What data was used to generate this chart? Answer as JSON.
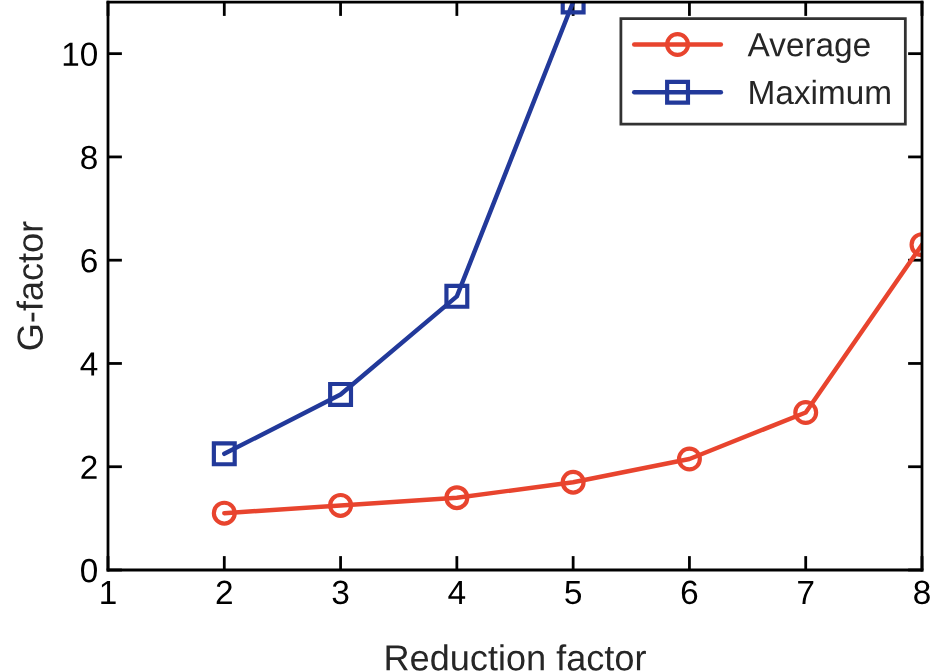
{
  "chart_data": {
    "type": "line",
    "xlabel": "Reduction factor",
    "ylabel": "G-factor",
    "xlim": [
      1,
      8
    ],
    "xticks": [
      1,
      2,
      3,
      4,
      5,
      6,
      7,
      8
    ],
    "ylim": [
      0,
      11
    ],
    "yticks": [
      0,
      2,
      4,
      6,
      8,
      10
    ],
    "grid": false,
    "legend": "top right",
    "line_style": "solid",
    "series": [
      {
        "name": "Average",
        "color": "#e8442e",
        "marker": "circle",
        "x": [
          2,
          3,
          4,
          5,
          6,
          7,
          8
        ],
        "values": [
          1.1,
          1.25,
          1.4,
          1.7,
          2.15,
          3.05,
          6.3
        ]
      },
      {
        "name": "Maximum",
        "color": "#22399a",
        "marker": "square",
        "x": [
          2,
          3,
          4,
          5
        ],
        "values": [
          2.25,
          3.4,
          5.3,
          11
        ]
      }
    ]
  }
}
